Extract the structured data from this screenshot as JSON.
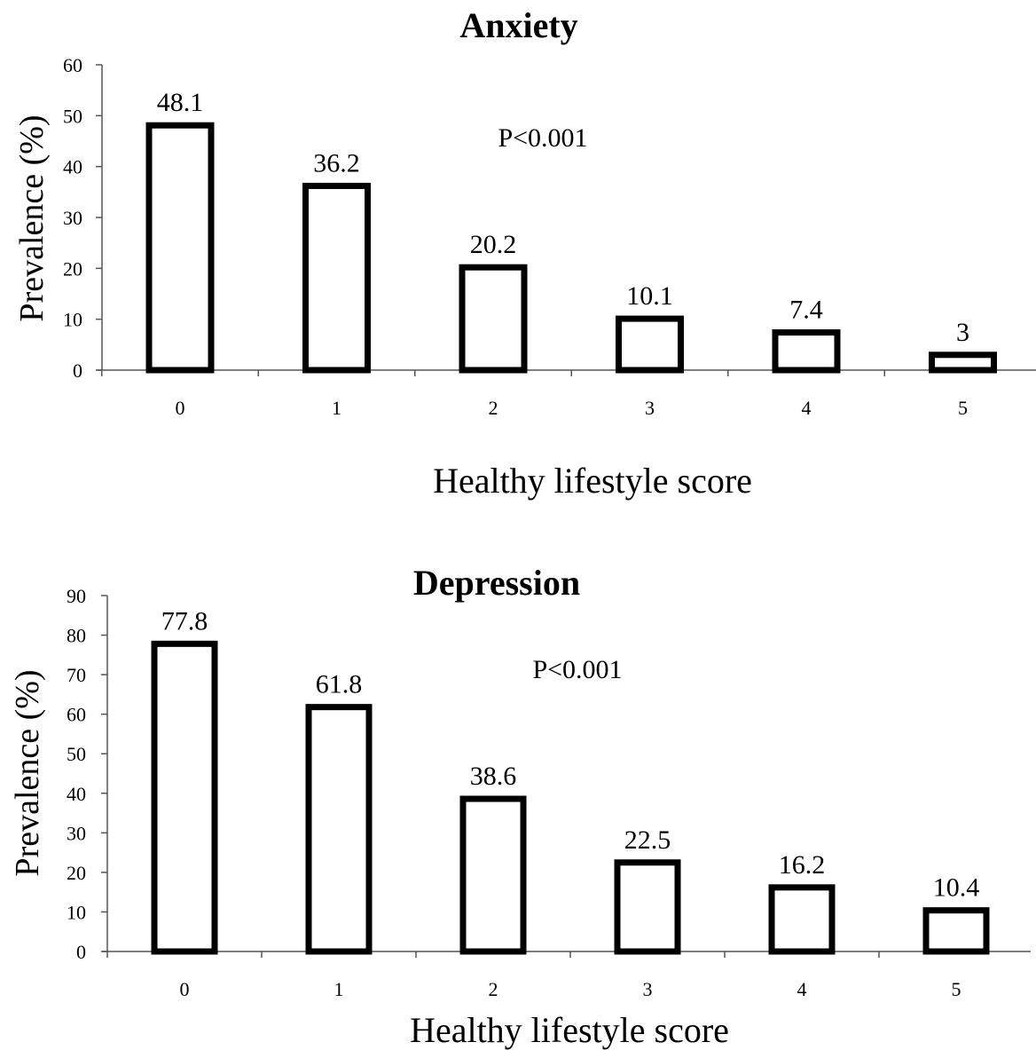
{
  "chart_data": [
    {
      "type": "bar",
      "title": "Anxiety",
      "xlabel": "Healthy lifestyle score",
      "ylabel": "Prevalence (%)",
      "categories": [
        "0",
        "1",
        "2",
        "3",
        "4",
        "5"
      ],
      "values": [
        48.1,
        36.2,
        20.2,
        10.1,
        7.4,
        3
      ],
      "data_labels": [
        "48.1",
        "36.2",
        "20.2",
        "10.1",
        "7.4",
        "3"
      ],
      "ylim": [
        0,
        60
      ],
      "yticks": [
        "0",
        "10",
        "20",
        "30",
        "40",
        "50",
        "60"
      ],
      "annotation": "P<0.001",
      "grid": false,
      "bar_fill": "#ffffff",
      "bar_stroke": "#000000"
    },
    {
      "type": "bar",
      "title": "Depression",
      "xlabel": "Healthy lifestyle score",
      "ylabel": "Prevalence (%)",
      "categories": [
        "0",
        "1",
        "2",
        "3",
        "4",
        "5"
      ],
      "values": [
        77.8,
        61.8,
        38.6,
        22.5,
        16.2,
        10.4
      ],
      "data_labels": [
        "77.8",
        "61.8",
        "38.6",
        "22.5",
        "16.2",
        "10.4"
      ],
      "ylim": [
        0,
        90
      ],
      "yticks": [
        "0",
        "10",
        "20",
        "30",
        "40",
        "50",
        "60",
        "70",
        "80",
        "90"
      ],
      "annotation": "P<0.001",
      "grid": false,
      "bar_fill": "#ffffff",
      "bar_stroke": "#000000"
    }
  ]
}
